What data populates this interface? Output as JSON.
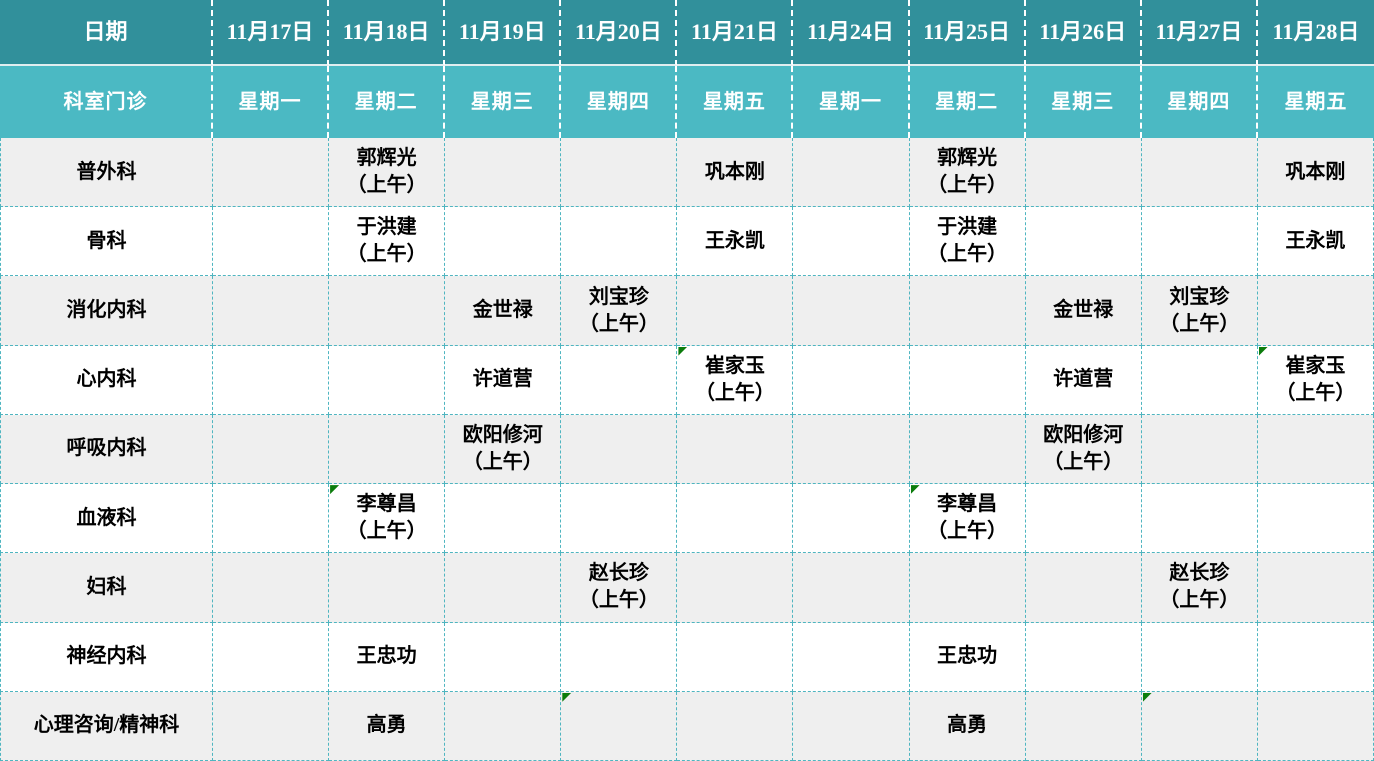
{
  "header": {
    "date_label": "日期",
    "dept_label": "科室门诊",
    "columns": [
      {
        "date": "11月17日",
        "weekday": "星期一"
      },
      {
        "date": "11月18日",
        "weekday": "星期二"
      },
      {
        "date": "11月19日",
        "weekday": "星期三"
      },
      {
        "date": "11月20日",
        "weekday": "星期四"
      },
      {
        "date": "11月21日",
        "weekday": "星期五"
      },
      {
        "date": "11月24日",
        "weekday": "星期一"
      },
      {
        "date": "11月25日",
        "weekday": "星期二"
      },
      {
        "date": "11月26日",
        "weekday": "星期三"
      },
      {
        "date": "11月27日",
        "weekday": "星期四"
      },
      {
        "date": "11月28日",
        "weekday": "星期五"
      }
    ]
  },
  "rows": [
    {
      "label": "普外科",
      "cells": [
        "",
        "郭辉光\n（上午）",
        "",
        "",
        "巩本刚",
        "",
        "郭辉光\n（上午）",
        "",
        "",
        "巩本刚"
      ],
      "flags": []
    },
    {
      "label": "骨科",
      "cells": [
        "",
        "于洪建\n（上午）",
        "",
        "",
        "王永凯",
        "",
        "于洪建\n（上午）",
        "",
        "",
        "王永凯"
      ],
      "flags": []
    },
    {
      "label": "消化内科",
      "cells": [
        "",
        "",
        "金世禄",
        "刘宝珍\n（上午）",
        "",
        "",
        "",
        "金世禄",
        "刘宝珍\n（上午）",
        ""
      ],
      "flags": []
    },
    {
      "label": "心内科",
      "cells": [
        "",
        "",
        "许道营",
        "",
        "崔家玉\n（上午）",
        "",
        "",
        "许道营",
        "",
        "崔家玉\n（上午）"
      ],
      "flags": [
        4,
        9
      ]
    },
    {
      "label": "呼吸内科",
      "cells": [
        "",
        "",
        "欧阳修河\n（上午）",
        "",
        "",
        "",
        "",
        "欧阳修河\n（上午）",
        "",
        ""
      ],
      "flags": []
    },
    {
      "label": "血液科",
      "cells": [
        "",
        "李尊昌\n（上午）",
        "",
        "",
        "",
        "",
        "李尊昌\n（上午）",
        "",
        "",
        ""
      ],
      "flags": [
        1,
        6
      ]
    },
    {
      "label": "妇科",
      "cells": [
        "",
        "",
        "",
        "赵长珍\n（上午）",
        "",
        "",
        "",
        "",
        "赵长珍\n（上午）",
        ""
      ],
      "flags": []
    },
    {
      "label": "神经内科",
      "cells": [
        "",
        "王忠功",
        "",
        "",
        "",
        "",
        "王忠功",
        "",
        "",
        ""
      ],
      "flags": []
    },
    {
      "label": "心理咨询/精神科",
      "cells": [
        "",
        "高勇",
        "",
        "",
        "",
        "",
        "高勇",
        "",
        "",
        ""
      ],
      "flags": [
        3,
        8
      ]
    }
  ],
  "colors": {
    "header_top_bg": "#31909B",
    "header_bottom_bg": "#4BB9C3",
    "row_alt_bg": "#EFEFEF",
    "row_bg": "#FFFFFF",
    "grid_line": "#4FB5C0",
    "header_text": "#FFFFFF",
    "body_text": "#000000",
    "flag_green": "#0B7C0B"
  }
}
